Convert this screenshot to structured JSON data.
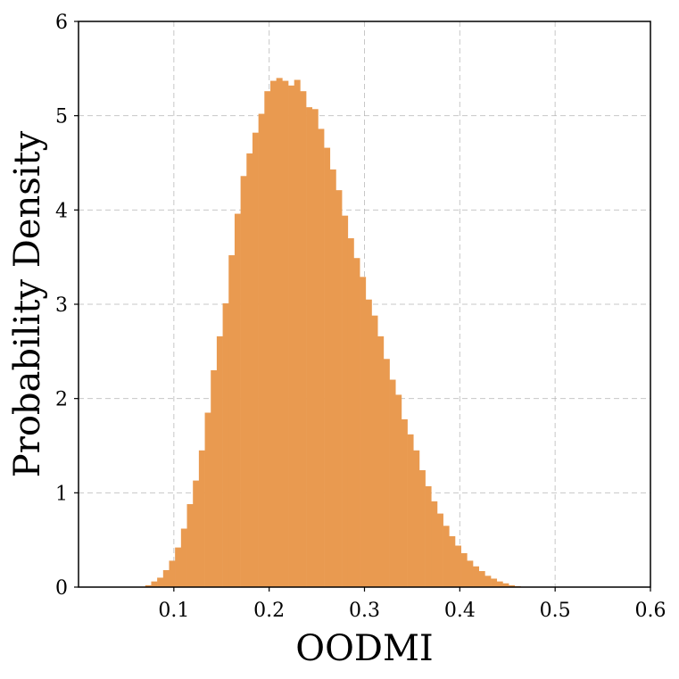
{
  "colors": {
    "bar": "#E99A50",
    "grid": "#b0b0b0",
    "axis": "#000000"
  },
  "chart_data": {
    "type": "bar",
    "title": "",
    "xlabel": "OODMI",
    "ylabel": "Probability Density",
    "xlim": [
      0.0,
      0.6
    ],
    "ylim": [
      0,
      6
    ],
    "xticks": [
      0.1,
      0.2,
      0.3,
      0.4,
      0.5,
      0.6
    ],
    "xtick_labels": [
      "0.1",
      "0.2",
      "0.3",
      "0.4",
      "0.5",
      "0.6"
    ],
    "yticks": [
      0,
      1,
      2,
      3,
      4,
      5,
      6
    ],
    "ytick_labels": [
      "0",
      "1",
      "2",
      "3",
      "4",
      "5",
      "6"
    ],
    "grid": true,
    "legend": "none",
    "bin_start": 0.07,
    "bin_width": 0.00625,
    "values": [
      0.02,
      0.06,
      0.1,
      0.18,
      0.28,
      0.42,
      0.62,
      0.88,
      1.13,
      1.45,
      1.85,
      2.3,
      2.66,
      3.01,
      3.52,
      3.96,
      4.36,
      4.6,
      4.82,
      5.02,
      5.26,
      5.37,
      5.4,
      5.37,
      5.32,
      5.38,
      5.26,
      5.09,
      5.07,
      4.86,
      4.66,
      4.43,
      4.21,
      3.94,
      3.7,
      3.49,
      3.29,
      3.05,
      2.88,
      2.66,
      2.42,
      2.2,
      2.04,
      1.78,
      1.62,
      1.45,
      1.24,
      1.07,
      0.91,
      0.78,
      0.65,
      0.54,
      0.44,
      0.36,
      0.28,
      0.22,
      0.17,
      0.12,
      0.09,
      0.06,
      0.04,
      0.02,
      0.01
    ]
  }
}
